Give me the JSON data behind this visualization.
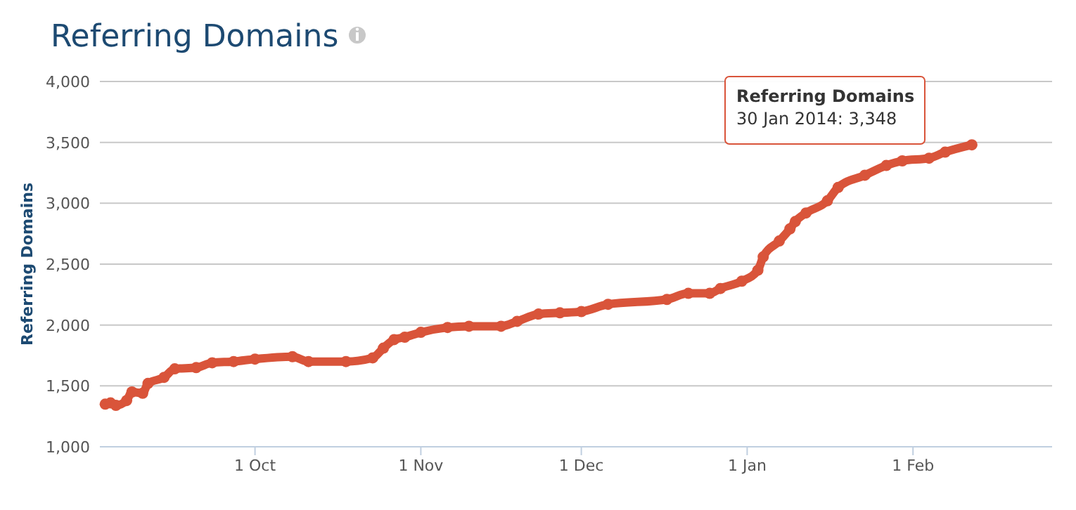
{
  "chart_data": {
    "type": "line",
    "title": "Referring Domains",
    "ylabel": "Referring Domains",
    "x": [
      "2013-09-03",
      "2013-09-04",
      "2013-09-05",
      "2013-09-07",
      "2013-09-08",
      "2013-09-10",
      "2013-09-11",
      "2013-09-14",
      "2013-09-16",
      "2013-09-20",
      "2013-09-23",
      "2013-09-27",
      "2013-10-01",
      "2013-10-08",
      "2013-10-11",
      "2013-10-18",
      "2013-10-23",
      "2013-10-25",
      "2013-10-27",
      "2013-10-29",
      "2013-11-01",
      "2013-11-06",
      "2013-11-10",
      "2013-11-16",
      "2013-11-19",
      "2013-11-23",
      "2013-11-27",
      "2013-12-01",
      "2013-12-06",
      "2013-12-17",
      "2013-12-21",
      "2013-12-25",
      "2013-12-27",
      "2013-12-31",
      "2014-01-03",
      "2014-01-04",
      "2014-01-07",
      "2014-01-09",
      "2014-01-10",
      "2014-01-12",
      "2014-01-16",
      "2014-01-18",
      "2014-01-23",
      "2014-01-27",
      "2014-01-30",
      "2014-02-04",
      "2014-02-07",
      "2014-02-12"
    ],
    "series": [
      {
        "color": "#d9543a",
        "values": [
          1350,
          1360,
          1340,
          1380,
          1450,
          1440,
          1520,
          1570,
          1640,
          1650,
          1690,
          1700,
          1720,
          1740,
          1700,
          1700,
          1730,
          1810,
          1880,
          1900,
          1940,
          1980,
          1990,
          1990,
          2030,
          2090,
          2100,
          2110,
          2170,
          2210,
          2260,
          2260,
          2300,
          2360,
          2450,
          2560,
          2690,
          2790,
          2850,
          2920,
          3020,
          3130,
          3230,
          3310,
          3348,
          3370,
          3420,
          3480
        ]
      }
    ],
    "xlim": [
      "2013-09-02",
      "2014-02-27"
    ],
    "xticks": [
      {
        "value": "2013-10-01",
        "label": "1 Oct"
      },
      {
        "value": "2013-11-01",
        "label": "1 Nov"
      },
      {
        "value": "2013-12-01",
        "label": "1 Dec"
      },
      {
        "value": "2014-01-01",
        "label": "1 Jan"
      },
      {
        "value": "2014-02-01",
        "label": "1 Feb"
      }
    ],
    "ylim": [
      1000,
      4000
    ],
    "yticks": [
      {
        "value": 1000,
        "label": "1,000"
      },
      {
        "value": 1500,
        "label": "1,500"
      },
      {
        "value": 2000,
        "label": "2,000"
      },
      {
        "value": 2500,
        "label": "2,500"
      },
      {
        "value": 3000,
        "label": "3,000"
      },
      {
        "value": 3500,
        "label": "3,500"
      },
      {
        "value": 4000,
        "label": "4,000"
      }
    ],
    "grid": "y",
    "marker": "circle",
    "line_style": "solid",
    "annotations": [
      {
        "text": "Referring Domains\n30 Jan 2014: 3,348",
        "x": "2014-01-30",
        "y": 3348
      }
    ]
  }
}
